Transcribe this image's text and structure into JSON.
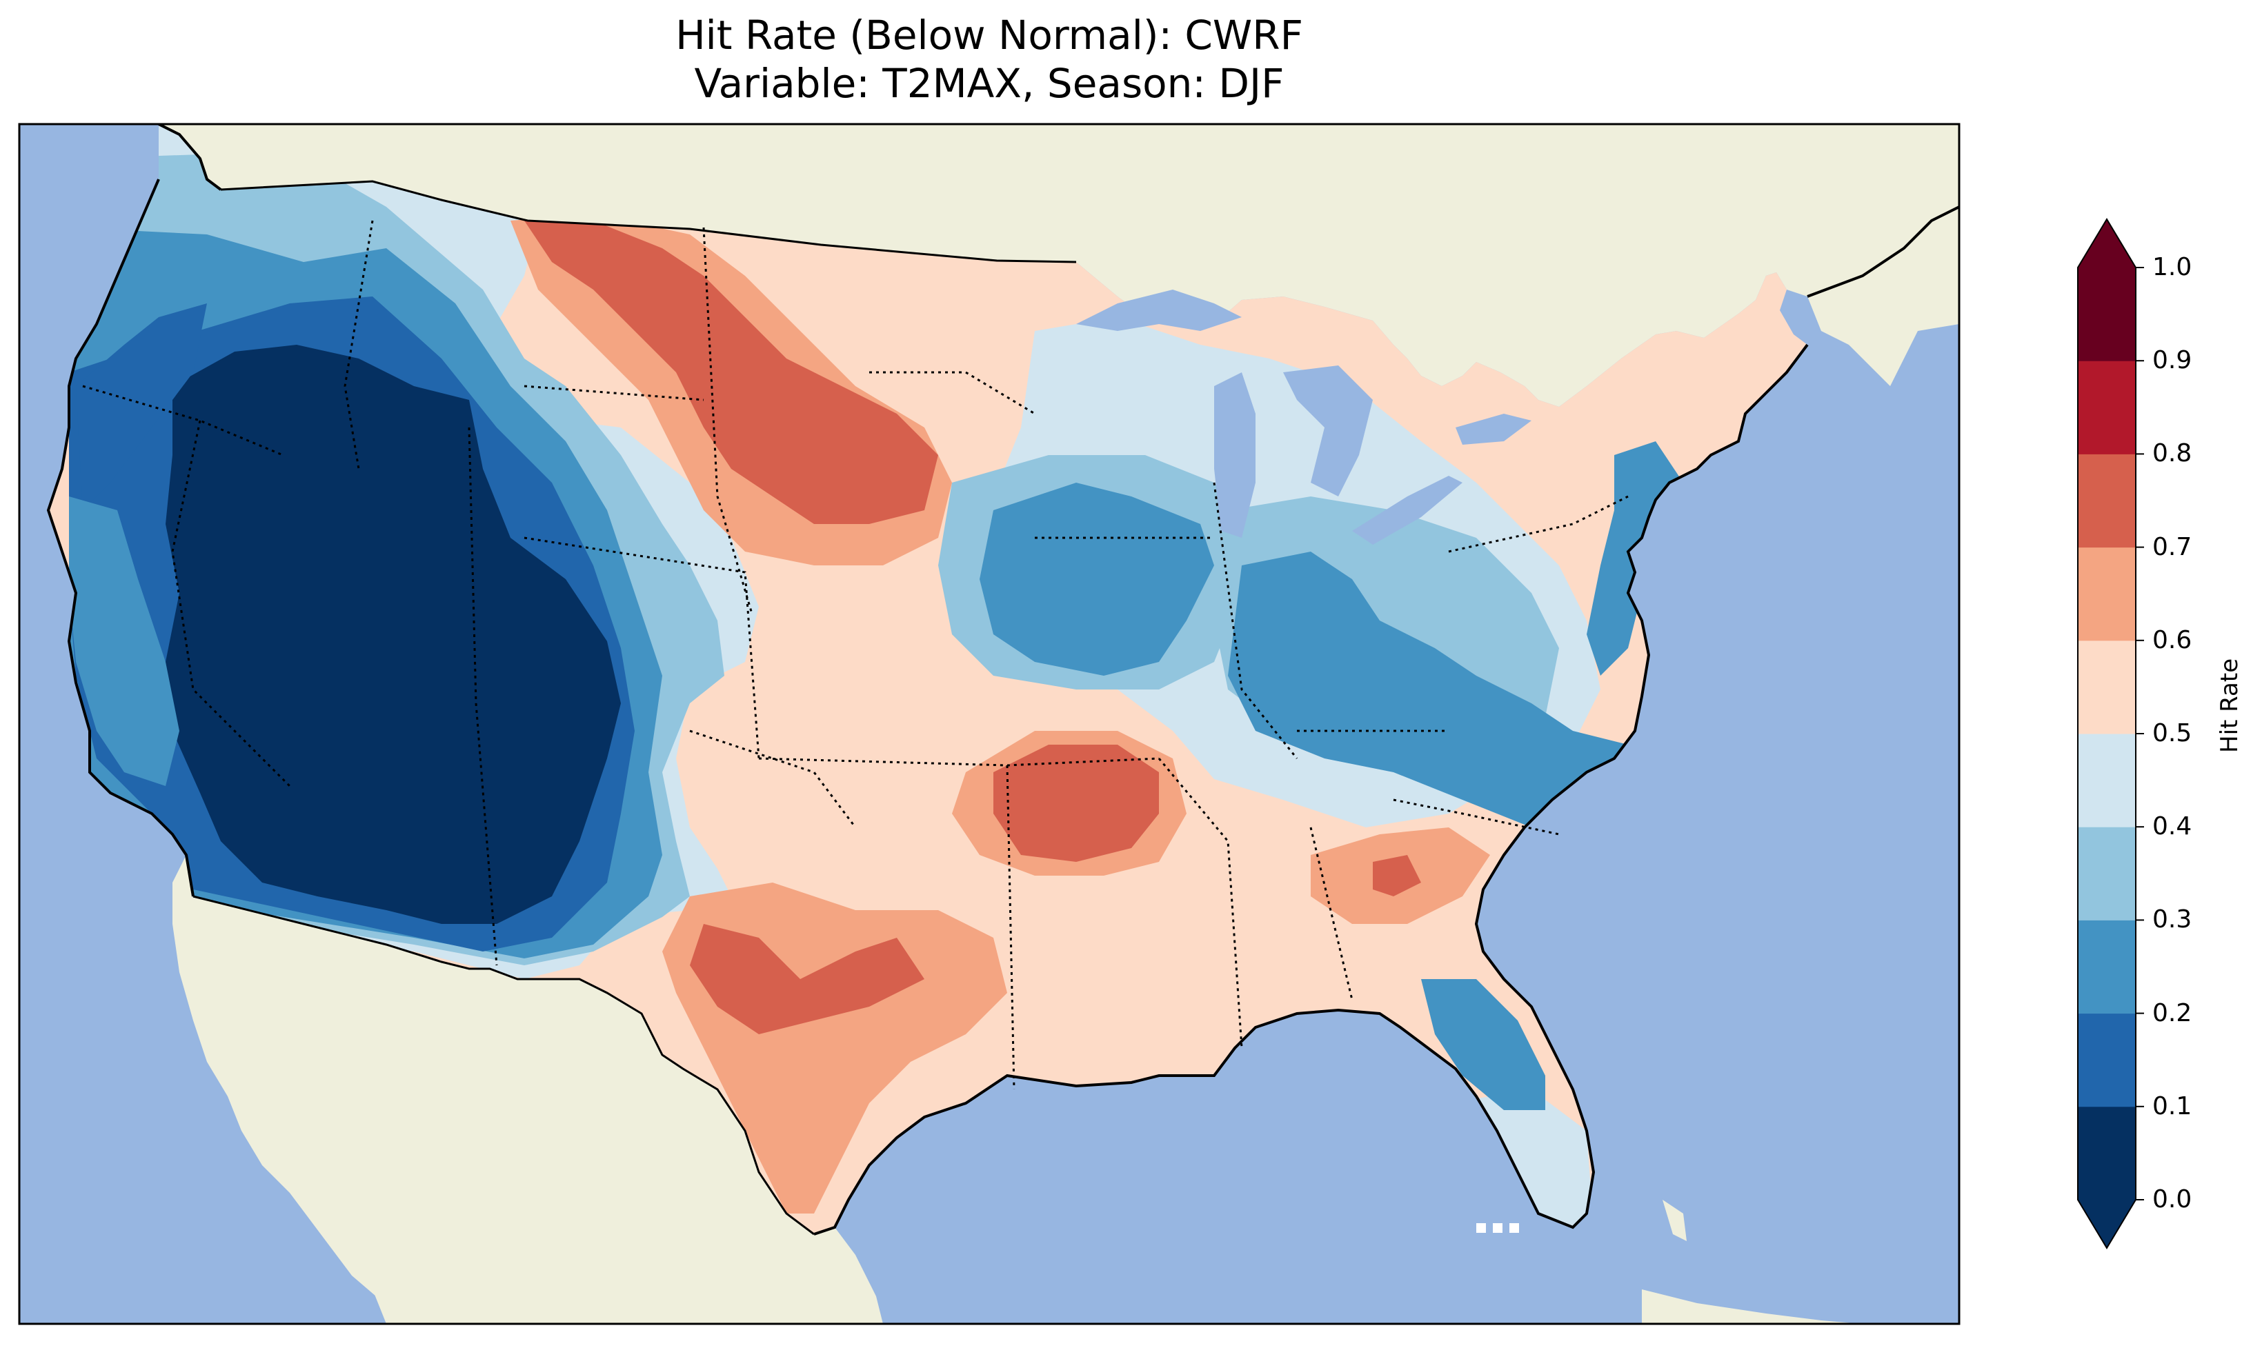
{
  "title": {
    "line1": "Hit Rate (Below Normal): CWRF",
    "line2": "Variable: T2MAX, Season: DJF"
  },
  "colors": {
    "ocean": "#97b6e1",
    "land": "#efefdc",
    "lakes": "#97b6e1",
    "no_data": "#ffffff"
  },
  "colorbar": {
    "label": "Hit Rate",
    "ticks": [
      "0.0",
      "0.1",
      "0.2",
      "0.3",
      "0.4",
      "0.5",
      "0.6",
      "0.7",
      "0.8",
      "0.9",
      "1.0"
    ],
    "extend": "both",
    "bins": [
      {
        "range": "0.0-0.1",
        "color": "#053061"
      },
      {
        "range": "0.1-0.2",
        "color": "#2166ac"
      },
      {
        "range": "0.2-0.3",
        "color": "#4393c3"
      },
      {
        "range": "0.3-0.4",
        "color": "#92c5de"
      },
      {
        "range": "0.4-0.5",
        "color": "#d1e5f0"
      },
      {
        "range": "0.5-0.6",
        "color": "#fddbc7"
      },
      {
        "range": "0.6-0.7",
        "color": "#f4a582"
      },
      {
        "range": "0.7-0.8",
        "color": "#d6604d"
      },
      {
        "range": "0.8-0.9",
        "color": "#b2182b"
      },
      {
        "range": "0.9-1.0",
        "color": "#67001f"
      }
    ]
  },
  "map": {
    "region": "Contiguous United States",
    "field": "Hit rate (below normal) of T2MAX, DJF, CWRF",
    "regions": [
      {
        "area": "Great Basin, Nevada, Utah, Arizona, interior California",
        "value": 0.05
      },
      {
        "area": "Colorado Plateau / Four Corners",
        "value": 0.05
      },
      {
        "area": "Pacific Northwest interior",
        "value": 0.15
      },
      {
        "area": "Pacific coast",
        "value": 0.25
      },
      {
        "area": "Rocky Mountains (Idaho, Wyoming, Colorado)",
        "value": 0.35
      },
      {
        "area": "Northern Rockies (Montana)",
        "value": 0.45
      },
      {
        "area": "Northern High Plains",
        "value": 0.55
      },
      {
        "area": "Dakotas / Nebraska",
        "value": 0.75
      },
      {
        "area": "Central and Southern Plains",
        "value": 0.55
      },
      {
        "area": "West Texas",
        "value": 0.65
      },
      {
        "area": "Arkansas / Ozarks",
        "value": 0.75
      },
      {
        "area": "Georgia / South Carolina",
        "value": 0.65
      },
      {
        "area": "Upper Midwest (Iowa, Minnesota, Wisconsin)",
        "value": 0.25
      },
      {
        "area": "Ohio Valley (Indiana, Ohio, Kentucky)",
        "value": 0.25
      },
      {
        "area": "Great Lakes region",
        "value": 0.45
      },
      {
        "area": "North Carolina / Virginia",
        "value": 0.25
      },
      {
        "area": "Mid-Atlantic coast",
        "value": 0.35
      },
      {
        "area": "New England",
        "value": 0.45
      },
      {
        "area": "Gulf coast / Deep South",
        "value": 0.55
      },
      {
        "area": "Florida peninsula",
        "value": 0.25
      },
      {
        "area": "South Florida",
        "value": 0.45
      }
    ]
  }
}
